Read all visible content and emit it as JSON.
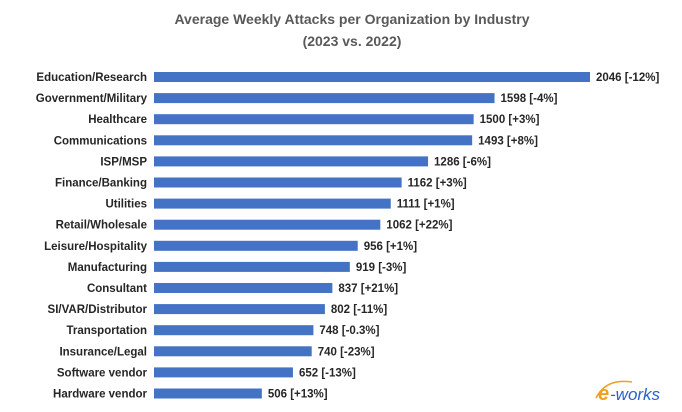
{
  "chart_data": {
    "type": "bar",
    "orientation": "horizontal",
    "title": "Average Weekly Attacks per Organization by Industry",
    "subtitle": "(2023 vs. 2022)",
    "categories": [
      "Education/Research",
      "Government/Military",
      "Healthcare",
      "Communications",
      "ISP/MSP",
      "Finance/Banking",
      "Utilities",
      "Retail/Wholesale",
      "Leisure/Hospitality",
      "Manufacturing",
      "Consultant",
      "SI/VAR/Distributor",
      "Transportation",
      "Insurance/Legal",
      "Software vendor",
      "Hardware vendor"
    ],
    "values": [
      2046,
      1598,
      1500,
      1493,
      1286,
      1162,
      1111,
      1062,
      956,
      919,
      837,
      802,
      748,
      740,
      652,
      506
    ],
    "data_labels": [
      "2046 [-12%]",
      "1598 [-4%]",
      "1500 [+3%]",
      "1493 [+8%]",
      "1286 [-6%]",
      "1162 [+3%]",
      "1111 [+1%]",
      "1062 [+22%]",
      "956 [+1%]",
      "919 [-3%]",
      "837 [+21%]",
      "802 [-11%]",
      "748 [-0.3%]",
      "740 [-23%]",
      "652 [-13%]",
      "506 [+13%]"
    ],
    "xlim": [
      0,
      2046
    ],
    "grid": false,
    "legend": "none",
    "bar_color": "#4472C4"
  },
  "watermark": {
    "text": "e-works",
    "color_e": "#F0A020",
    "color_rest": "#2A62C9"
  }
}
